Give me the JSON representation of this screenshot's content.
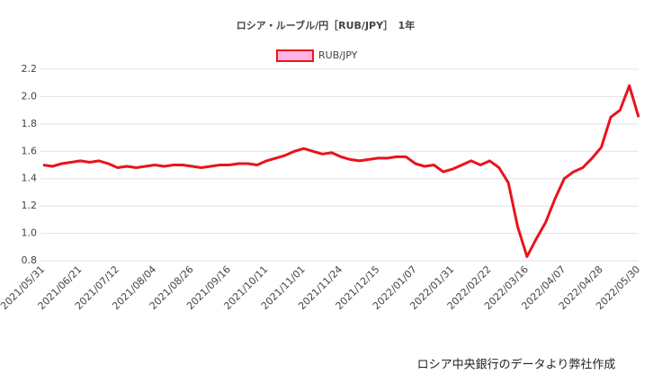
{
  "chart_data": {
    "type": "line",
    "title": "ロシア・ルーブル/円［RUB/JPY］　1年",
    "source": "ロシア中央銀行のデータより弊社作成",
    "categories": [
      "2021/05/31",
      null,
      null,
      null,
      "2021/06/21",
      null,
      null,
      null,
      "2021/07/12",
      null,
      null,
      null,
      "2021/08/04",
      null,
      null,
      null,
      "2021/08/26",
      null,
      null,
      null,
      "2021/09/16",
      null,
      null,
      null,
      "2021/10/11",
      null,
      null,
      null,
      "2021/11/01",
      null,
      null,
      null,
      "2021/11/24",
      null,
      null,
      null,
      "2021/12/15",
      null,
      null,
      null,
      "2022/01/07",
      null,
      null,
      null,
      "2022/01/31",
      null,
      null,
      null,
      "2022/02/22",
      null,
      null,
      null,
      "2022/03/16",
      null,
      null,
      null,
      "2022/04/07",
      null,
      null,
      null,
      "2022/04/28",
      null,
      null,
      null,
      "2022/05/30"
    ],
    "series": [
      {
        "name": "RUB/JPY",
        "color": "#e8141c",
        "legend_fill": "#ffb3e6",
        "values": [
          1.5,
          1.49,
          1.51,
          1.52,
          1.53,
          1.52,
          1.53,
          1.51,
          1.48,
          1.49,
          1.48,
          1.49,
          1.5,
          1.49,
          1.5,
          1.5,
          1.49,
          1.48,
          1.49,
          1.5,
          1.5,
          1.51,
          1.51,
          1.5,
          1.53,
          1.55,
          1.57,
          1.6,
          1.62,
          1.6,
          1.58,
          1.59,
          1.56,
          1.54,
          1.53,
          1.54,
          1.55,
          1.55,
          1.56,
          1.56,
          1.51,
          1.49,
          1.5,
          1.45,
          1.47,
          1.5,
          1.53,
          1.5,
          1.53,
          1.48,
          1.37,
          1.05,
          0.83,
          0.96,
          1.08,
          1.25,
          1.4,
          1.45,
          1.48,
          1.55,
          1.63,
          1.85,
          1.9,
          2.08,
          1.85
        ]
      }
    ],
    "ylim": [
      0.8,
      2.2
    ],
    "yticks": [
      0.8,
      {
        "value": 1,
        "label": "1.0"
      },
      1.2,
      1.4,
      1.6,
      1.8,
      {
        "value": 2,
        "label": "2.0"
      },
      2.2
    ],
    "grid": true
  }
}
